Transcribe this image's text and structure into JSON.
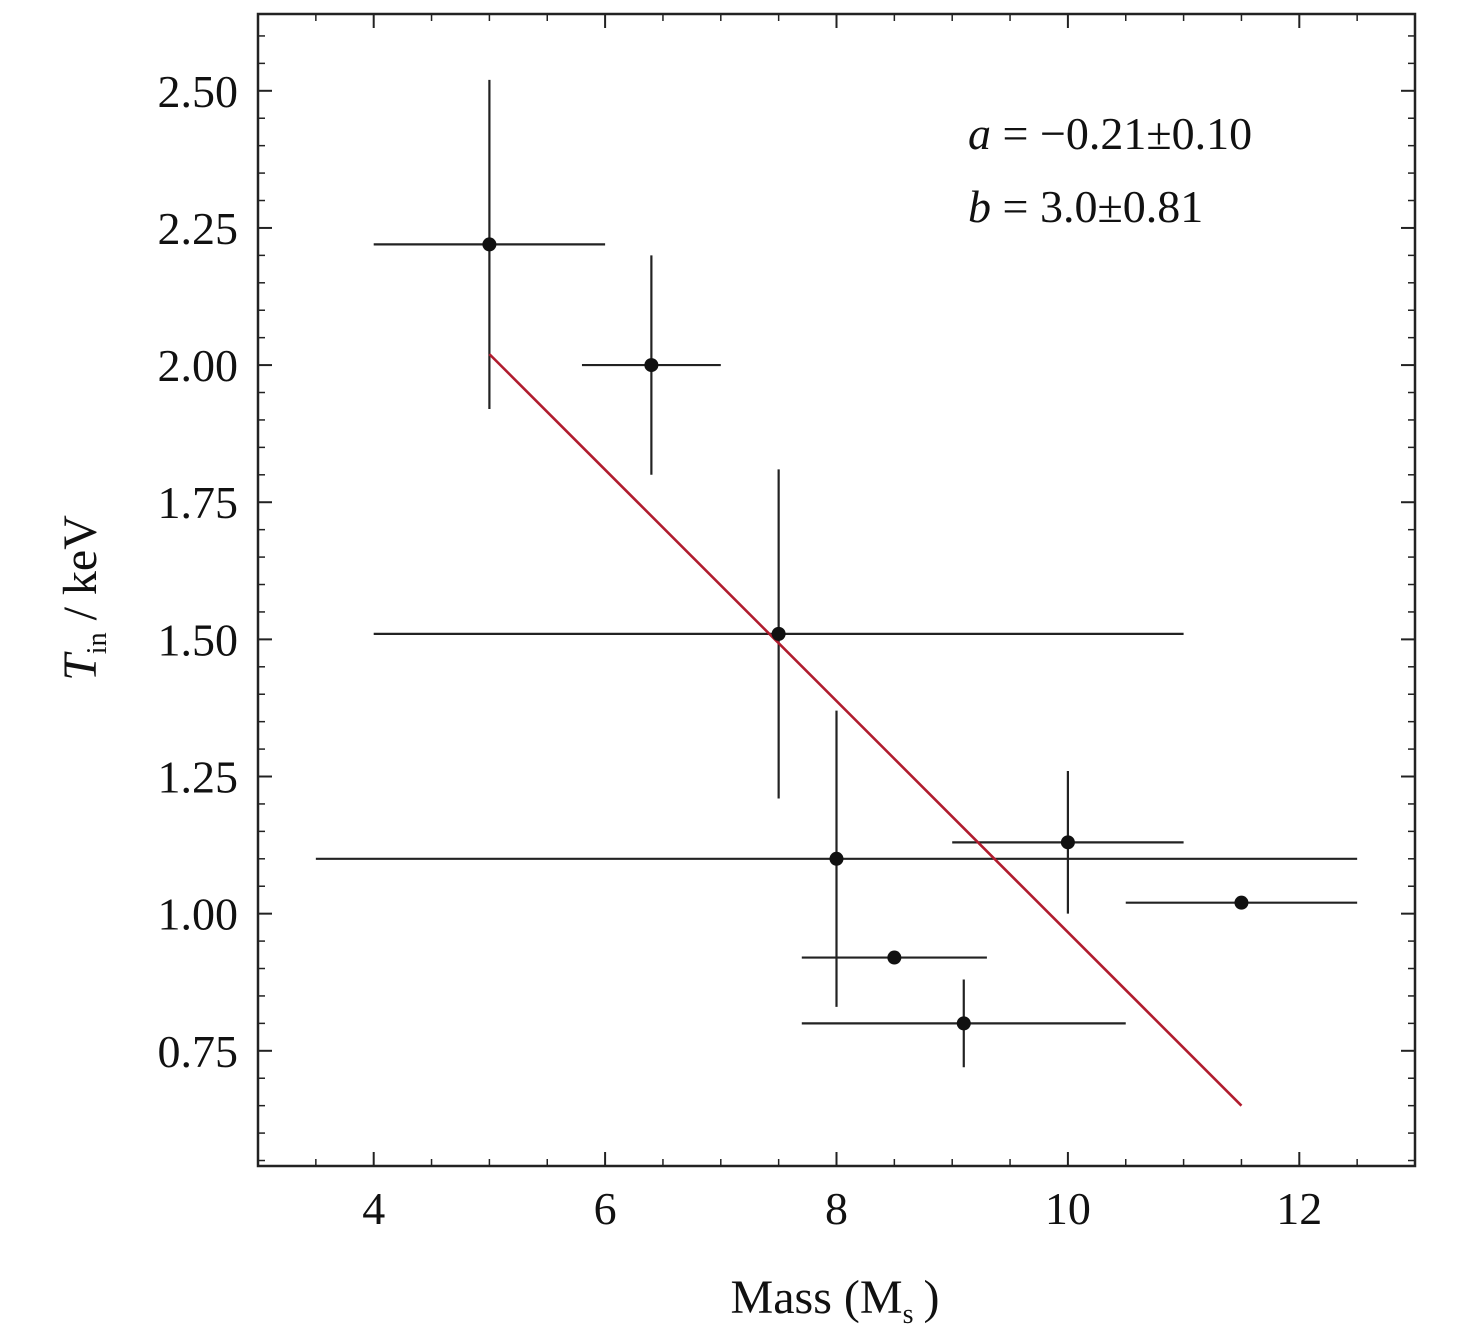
{
  "chart_data": {
    "type": "scatter",
    "xlabel": "Mass (M",
    "xlabel_sub": "s",
    "xlabel_end": ")",
    "ylabel": "T",
    "ylabel_sub": "in",
    "ylabel_end": "/ keV",
    "xlim": [
      3.0,
      13.0
    ],
    "ylim": [
      0.54,
      2.64
    ],
    "xticks": [
      4,
      6,
      8,
      10,
      12
    ],
    "xtick_labels": [
      "4",
      "6",
      "8",
      "10",
      "12"
    ],
    "yticks": [
      0.75,
      1.0,
      1.25,
      1.5,
      1.75,
      2.0,
      2.25,
      2.5
    ],
    "ytick_labels": [
      "0.75",
      "1.00",
      "1.25",
      "1.50",
      "1.75",
      "2.00",
      "2.25",
      "2.50"
    ],
    "points": [
      {
        "x": 5.0,
        "y": 2.22,
        "x_lo": 4.0,
        "x_hi": 6.0,
        "y_lo": 1.92,
        "y_hi": 2.52
      },
      {
        "x": 6.4,
        "y": 2.0,
        "x_lo": 5.8,
        "x_hi": 7.0,
        "y_lo": 1.8,
        "y_hi": 2.2
      },
      {
        "x": 7.5,
        "y": 1.51,
        "x_lo": 4.0,
        "x_hi": 11.0,
        "y_lo": 1.21,
        "y_hi": 1.81
      },
      {
        "x": 8.0,
        "y": 1.1,
        "x_lo": 3.5,
        "x_hi": 12.5,
        "y_lo": 0.83,
        "y_hi": 1.37
      },
      {
        "x": 8.5,
        "y": 0.92,
        "x_lo": 7.7,
        "x_hi": 9.3,
        "y_lo": 0.92,
        "y_hi": 0.92
      },
      {
        "x": 9.1,
        "y": 0.8,
        "x_lo": 7.7,
        "x_hi": 10.5,
        "y_lo": 0.72,
        "y_hi": 0.88
      },
      {
        "x": 10.0,
        "y": 1.13,
        "x_lo": 9.0,
        "x_hi": 11.0,
        "y_lo": 1.0,
        "y_hi": 1.26
      },
      {
        "x": 11.5,
        "y": 1.02,
        "x_lo": 10.5,
        "x_hi": 12.5,
        "y_lo": 1.02,
        "y_hi": 1.02
      }
    ],
    "fit_line": {
      "x": [
        5.0,
        11.5
      ],
      "y": [
        2.02,
        0.65
      ],
      "color": "#b01c2e"
    },
    "annotations": [
      {
        "var": "a",
        "text": " = −0.21±0.10"
      },
      {
        "var": "b",
        "text": " = 3.0±0.81"
      }
    ],
    "grid": false
  }
}
